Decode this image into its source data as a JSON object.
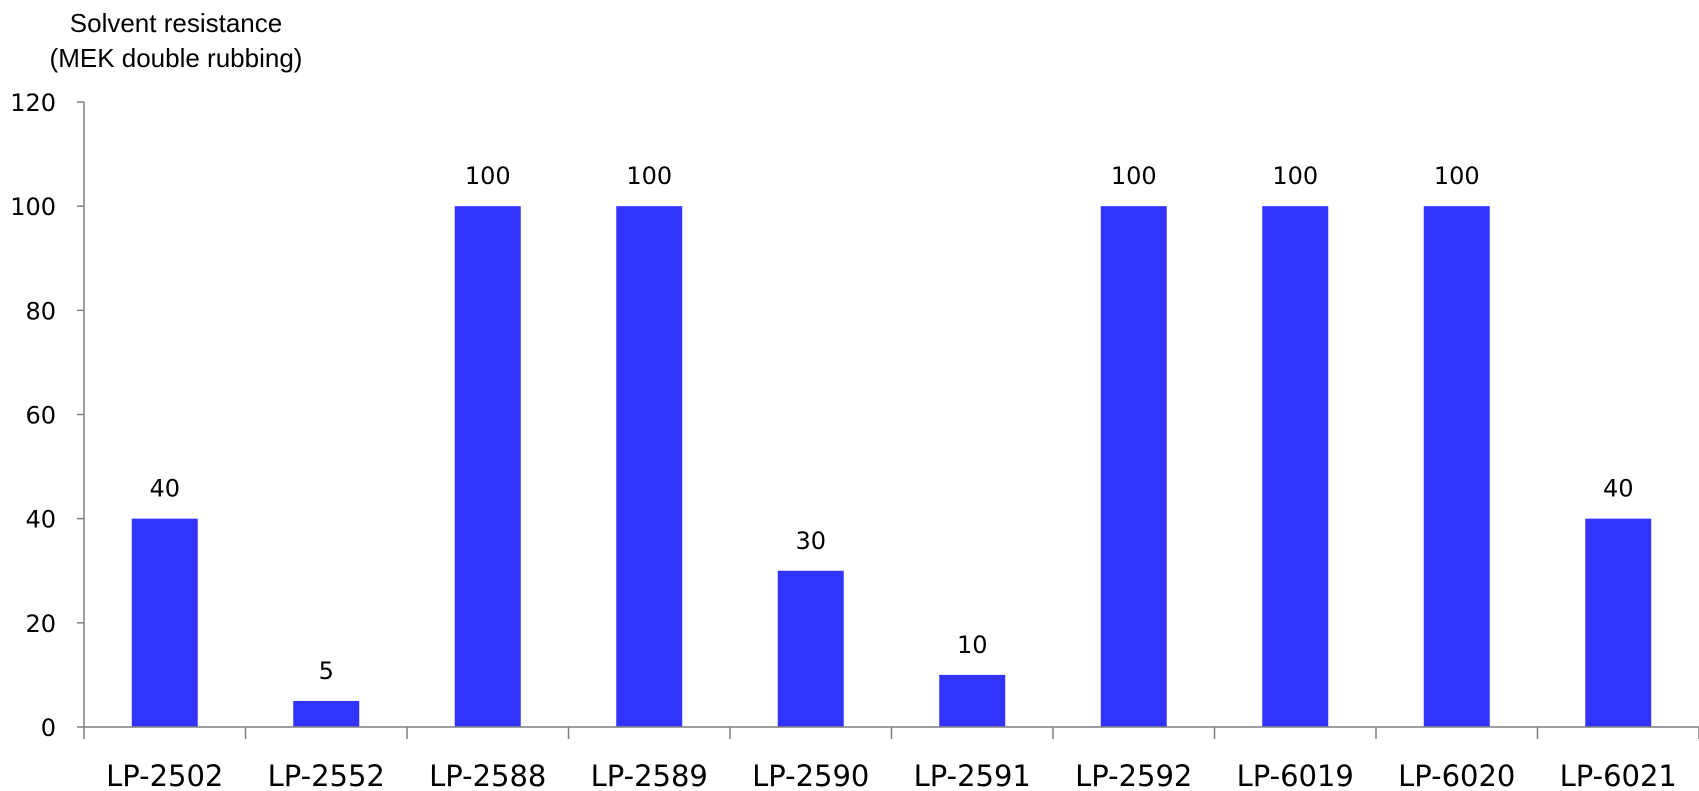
{
  "chart_data": {
    "type": "bar",
    "ylabel_lines": [
      "Solvent resistance",
      "(MEK double rubbing)"
    ],
    "xlabel": "",
    "categories": [
      "LP-2502",
      "LP-2552",
      "LP-2588",
      "LP-2589",
      "LP-2590",
      "LP-2591",
      "LP-2592",
      "LP-6019",
      "LP-6020",
      "LP-6021"
    ],
    "values": [
      40,
      5,
      100,
      100,
      30,
      10,
      100,
      100,
      100,
      40
    ],
    "data_labels": [
      "40",
      "5",
      "100",
      "100",
      "30",
      "10",
      "100",
      "100",
      "100",
      "40"
    ],
    "ylim": [
      0,
      120
    ],
    "yticks": [
      0,
      20,
      40,
      60,
      80,
      100,
      120
    ],
    "bar_color": "#3333ff",
    "grid": false,
    "legend": "none"
  }
}
